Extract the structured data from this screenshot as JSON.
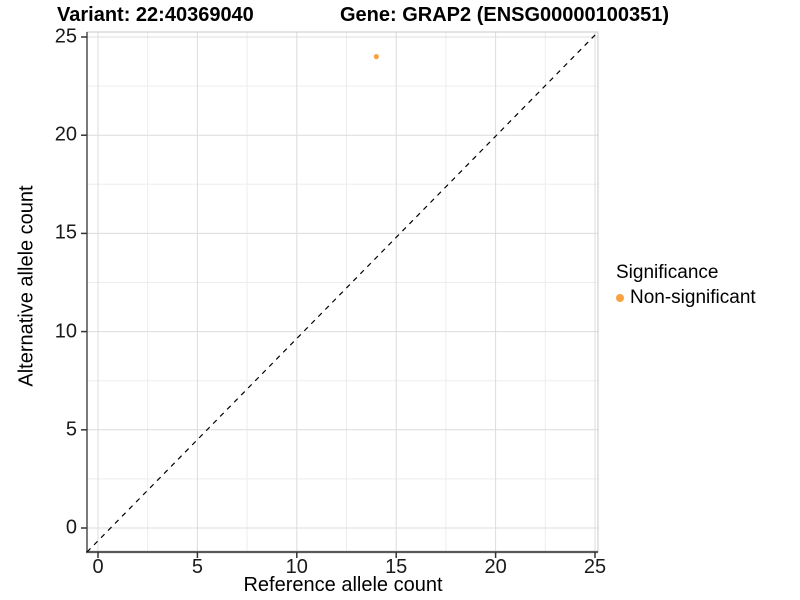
{
  "title": {
    "variant": "Variant: 22:40369040",
    "gene": "Gene: GRAP2 (ENSG00000100351)"
  },
  "legend": {
    "title": "Significance",
    "items": [
      {
        "label": "Non-significant",
        "color": "#F9A242"
      }
    ]
  },
  "colors": {
    "point": "#F9A242",
    "grid_major": "#DCDCDC",
    "grid_minor": "#EDEDED",
    "panel_border": "#C8C8C8",
    "axis_line": "#595959",
    "reference_line": "#000000"
  },
  "chart_data": {
    "type": "scatter",
    "title": "Variant: 22:40369040 — Gene: GRAP2 (ENSG00000100351)",
    "xlabel": "Reference allele count",
    "ylabel": "Alternative allele count",
    "xlim": [
      0,
      25
    ],
    "ylim": [
      0,
      25
    ],
    "x_ticks": [
      0,
      5,
      10,
      15,
      20,
      25
    ],
    "y_ticks": [
      0,
      5,
      10,
      15,
      20,
      25
    ],
    "x_minor_gridlines": [
      2.5,
      7.5,
      12.5,
      17.5,
      22.5
    ],
    "y_minor_gridlines": [
      2.5,
      7.5,
      12.5,
      17.5,
      22.5
    ],
    "grid": true,
    "legend_position": "right",
    "series": [
      {
        "name": "Non-significant",
        "color": "#F9A242",
        "points": [
          {
            "x": 14,
            "y": 24
          }
        ]
      }
    ],
    "reference_line": {
      "type": "identity",
      "slope": 1,
      "intercept": 0,
      "style": "dashed"
    }
  }
}
